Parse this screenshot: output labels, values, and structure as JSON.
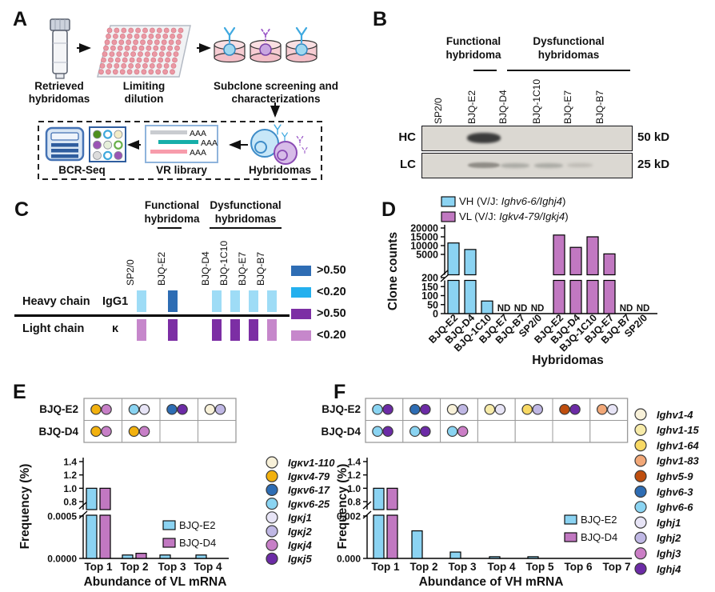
{
  "colors": {
    "bjq_e2": "#8BD3F2",
    "bjq_d4": "#C178C1",
    "heat_blue_dark": "#2E6DB4",
    "heat_blue_light": "#9EDCF6",
    "heat_cyan": "#24B0EE",
    "heat_purple_dark": "#7C2EA4",
    "heat_purple_light": "#C687CB"
  },
  "gene_colors": {
    "Igκv1-110": "#F8F1D9",
    "Igκv4-79": "#F2B10E",
    "Igκv6-17": "#2E6DB4",
    "Igκv6-25": "#8AD4F2",
    "Igκj1": "#E7E4F6",
    "Igκj2": "#BFB7E4",
    "Igκj4": "#C77FC7",
    "Igκj5": "#6C2BA6",
    "Ighv1-4": "#F8F1D9",
    "Ighv1-15": "#F7EBA9",
    "Ighv1-64": "#F8D964",
    "Ighv1-83": "#F2A878",
    "Ighv5-9": "#BF4E0E",
    "Ighv6-3": "#2E6DB4",
    "Ighv6-6": "#8AD4F2",
    "Ighj1": "#E7E4F6",
    "Ighj2": "#BFB7E4",
    "Ighj3": "#CB7EC6",
    "Ighj4": "#6C2BA6"
  },
  "panels": {
    "A": {
      "label": "A",
      "steps": [
        "Retrieved hybridomas",
        "Limiting dilution",
        "Subclone screening and characterizations"
      ],
      "vr_tags": [
        "AAA",
        "AAA",
        "AAA"
      ],
      "box_labels": {
        "bcr": "BCR-Seq",
        "vr": "VR library",
        "hyb": "Hybridomas"
      }
    },
    "B": {
      "label": "B",
      "functional_line1": "Functional",
      "functional_line2": "hybridoma",
      "dysfunctional_line1": "Dysfunctional",
      "dysfunctional_line2": "hybridomas",
      "lanes": [
        "SP2/0",
        "BJQ-E2",
        "BJQ-D4",
        "BJQ-1C10",
        "BJQ-E7",
        "BJQ-B7"
      ],
      "rows": [
        {
          "label": "HC",
          "marker": "50 kD"
        },
        {
          "label": "LC",
          "marker": "25 kD"
        }
      ],
      "bands": {
        "HC": [
          {
            "lane": "BJQ-E2",
            "strength": "strong"
          }
        ],
        "LC": [
          {
            "lane": "BJQ-E2",
            "strength": "medium"
          },
          {
            "lane": "BJQ-D4",
            "strength": "weak"
          },
          {
            "lane": "BJQ-1C10",
            "strength": "weak"
          },
          {
            "lane": "BJQ-E7",
            "strength": "faint"
          }
        ]
      }
    },
    "C": {
      "label": "C",
      "functional_line1": "Functional",
      "functional_line2": "hybridoma",
      "dysfunctional_line1": "Dysfunctional",
      "dysfunctional_line2": "hybridomas",
      "lanes": [
        "SP2/0",
        "BJQ-E2",
        "BJQ-D4",
        "BJQ-1C10",
        "BJQ-E7",
        "BJQ-B7"
      ],
      "rows": [
        {
          "label": "Heavy chain",
          "isotype": "IgG1",
          "levels": [
            "low",
            "high",
            "low",
            "low",
            "low",
            "low"
          ],
          "high_color": "heat_blue_dark",
          "low_color": "heat_blue_light"
        },
        {
          "label": "Light chain",
          "isotype": "κ",
          "levels": [
            "low",
            "high",
            "high",
            "high",
            "high",
            "low"
          ],
          "high_color": "heat_purple_dark",
          "low_color": "heat_purple_light"
        }
      ],
      "legend": [
        {
          "label": ">0.50",
          "color_key": "heat_blue_dark"
        },
        {
          "label": "<0.20",
          "color_key": "heat_cyan"
        },
        {
          "label": ">0.50",
          "color_key": "heat_purple_dark"
        },
        {
          "label": "<0.20",
          "color_key": "heat_purple_light"
        }
      ]
    },
    "D": {
      "label": "D"
    },
    "E": {
      "label": "E",
      "grid": {
        "rows": [
          {
            "label": "BJQ-E2",
            "cells": [
              [
                "Igκv4-79",
                "Igκj4"
              ],
              [
                "Igκv6-25",
                "Igκj1"
              ],
              [
                "Igκv6-17",
                "Igκj5"
              ],
              [
                "Igκv1-110",
                "Igκj2"
              ]
            ]
          },
          {
            "label": "BJQ-D4",
            "cells": [
              [
                "Igκv4-79",
                "Igκj4"
              ],
              [
                "Igκv4-79",
                "Igκj4"
              ],
              null,
              null
            ]
          }
        ]
      },
      "legend_genes": [
        "Igκv1-110",
        "Igκv4-79",
        "Igκv6-17",
        "Igκv6-25",
        "Igκj1",
        "Igκj2",
        "Igκj4",
        "Igκj5"
      ]
    },
    "F": {
      "label": "F",
      "grid": {
        "rows": [
          {
            "label": "BJQ-E2",
            "cells": [
              [
                "Ighv6-6",
                "Ighj4"
              ],
              [
                "Ighv6-3",
                "Ighj4"
              ],
              [
                "Ighv1-4",
                "Ighj2"
              ],
              [
                "Ighv1-15",
                "Ighj1"
              ],
              [
                "Ighv1-64",
                "Ighj2"
              ],
              [
                "Ighv5-9",
                "Ighj4"
              ],
              [
                "Ighv1-83",
                "Ighj1"
              ]
            ]
          },
          {
            "label": "BJQ-D4",
            "cells": [
              [
                "Ighv6-6",
                "Ighj4"
              ],
              [
                "Ighv6-6",
                "Ighj4"
              ],
              [
                "Ighv6-6",
                "Ighj3"
              ],
              null,
              null,
              null,
              null
            ]
          }
        ]
      },
      "legend_genes": [
        "Ighv1-4",
        "Ighv1-15",
        "Ighv1-64",
        "Ighv1-83",
        "Ighv5-9",
        "Ighv6-3",
        "Ighv6-6",
        "Ighj1",
        "Ighj2",
        "Ighj3",
        "Ighj4"
      ]
    }
  },
  "chart_data": [
    {
      "id": "D",
      "type": "bar",
      "ylabel": "Clone counts",
      "xlabel": "Hybridomas",
      "axis_break": true,
      "y_lower_ticks": [
        0,
        50,
        100,
        150,
        200
      ],
      "y_upper_ticks": [
        5000,
        10000,
        15000,
        20000
      ],
      "nd_label": "ND",
      "legend": [
        {
          "text_prefix": "VH (V/J: ",
          "text_genes": "Ighv6-6/Ighj4",
          "text_suffix": ")",
          "color_key": "bjq_e2"
        },
        {
          "text_prefix": "VL (V/J: ",
          "text_genes": "Igkv4-79/Igkj4",
          "text_suffix": ")",
          "color_key": "bjq_d4"
        }
      ],
      "groups": [
        {
          "name": "VH",
          "color_key": "bjq_e2",
          "categories": [
            "BJQ-E2",
            "BJQ-D4",
            "BJQ-1C10",
            "BJQ-E7",
            "BJQ-B7",
            "SP2/0"
          ],
          "values": [
            11500,
            7800,
            70,
            "ND",
            "ND",
            "ND"
          ]
        },
        {
          "name": "VL",
          "color_key": "bjq_d4",
          "categories": [
            "BJQ-E2",
            "BJQ-D4",
            "BJQ-1C10",
            "BJQ-E7",
            "BJQ-B7",
            "SP2/0"
          ],
          "values": [
            16000,
            9000,
            15000,
            5300,
            "ND",
            "ND"
          ]
        }
      ]
    },
    {
      "id": "E",
      "type": "bar",
      "ylabel": "Frequency (%)",
      "xlabel": "Abundance of VL mRNA",
      "axis_break": true,
      "categories": [
        "Top 1",
        "Top 2",
        "Top 3",
        "Top 4"
      ],
      "y_lower_ticks": [
        {
          "v": 0,
          "label": "0.0000"
        },
        {
          "v": 0.0005,
          "label": "0.0005"
        }
      ],
      "y_upper_ticks": [
        {
          "v": 0.8,
          "label": "0.8"
        },
        {
          "v": 1.0,
          "label": "1.0"
        },
        {
          "v": 1.2,
          "label": "1.2"
        },
        {
          "v": 1.4,
          "label": "1.4"
        }
      ],
      "series": [
        {
          "name": "BJQ-E2",
          "color_key": "bjq_e2",
          "values": [
            1.0,
            4e-05,
            4e-05,
            4e-05
          ]
        },
        {
          "name": "BJQ-D4",
          "color_key": "bjq_d4",
          "values": [
            1.0,
            6e-05,
            null,
            null
          ]
        }
      ]
    },
    {
      "id": "F",
      "type": "bar",
      "ylabel": "Frequency (%)",
      "xlabel": "Abundance of VH mRNA",
      "axis_break": true,
      "categories": [
        "Top 1",
        "Top 2",
        "Top 3",
        "Top 4",
        "Top 5",
        "Top 6",
        "Top 7"
      ],
      "y_lower_ticks": [
        {
          "v": 0,
          "label": "0.000"
        },
        {
          "v": 0.002,
          "label": "0.002"
        }
      ],
      "y_upper_ticks": [
        {
          "v": 0.8,
          "label": "0.8"
        },
        {
          "v": 1.0,
          "label": "1.0"
        },
        {
          "v": 1.2,
          "label": "1.2"
        },
        {
          "v": 1.4,
          "label": "1.4"
        }
      ],
      "series": [
        {
          "name": "BJQ-E2",
          "color_key": "bjq_e2",
          "values": [
            1.0,
            0.0013,
            0.0003,
            8e-05,
            8e-05,
            null,
            null
          ]
        },
        {
          "name": "BJQ-D4",
          "color_key": "bjq_d4",
          "values": [
            1.0,
            null,
            null,
            null,
            null,
            null,
            null
          ]
        }
      ]
    }
  ]
}
